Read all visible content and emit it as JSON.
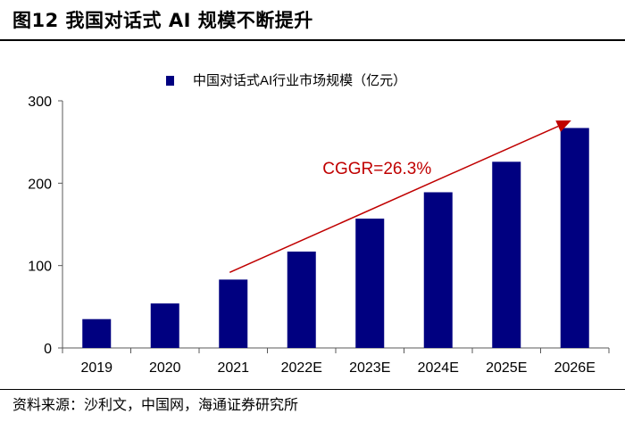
{
  "figure": {
    "title": "图12 我国对话式 AI 规模不断提升",
    "source": "资料来源：沙利文，中国网，海通证券研究所"
  },
  "colors": {
    "bar": "#000080",
    "arrow": "#C00000",
    "axis": "#595959",
    "text": "#000000"
  },
  "chart_data": {
    "type": "bar",
    "title": "",
    "xlabel": "",
    "ylabel": "",
    "legend": {
      "label": "中国对话式AI行业市场规模（亿元）",
      "position": "top"
    },
    "categories": [
      "2019",
      "2020",
      "2021",
      "2022E",
      "2023E",
      "2024E",
      "2025E",
      "2026E"
    ],
    "series": [
      {
        "name": "中国对话式AI行业市场规模（亿元）",
        "values": [
          35,
          54,
          83,
          117,
          157,
          189,
          226,
          267
        ]
      }
    ],
    "ylim": [
      0,
      300
    ],
    "yticks": [
      0,
      100,
      200,
      300
    ],
    "ytick_labels": [
      "0",
      "100",
      "200",
      "300"
    ],
    "grid": false,
    "annotation": {
      "text": "CGGR=26.3%",
      "arrow_from_category": "2021",
      "arrow_to_category": "2026E"
    }
  }
}
